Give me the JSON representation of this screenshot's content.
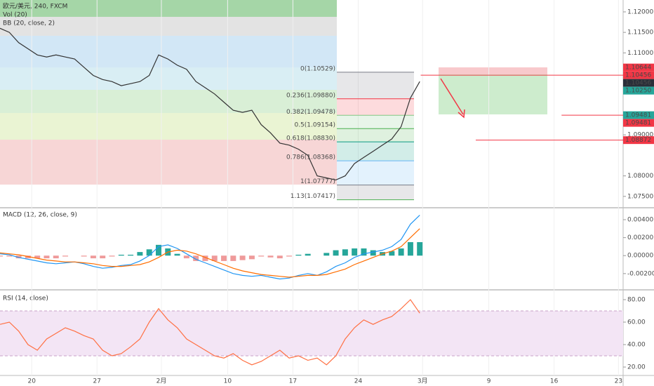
{
  "chart_data": [
    {
      "type": "line",
      "title": "欧元/美元, 240, FXCM",
      "indicators": [
        "Vol (20)",
        "BB (20, close, 2)"
      ],
      "x": [
        0,
        1,
        2,
        3,
        4,
        5,
        6,
        7,
        8,
        9,
        10,
        11,
        12,
        13,
        14,
        15,
        16,
        17,
        18,
        19,
        20,
        21,
        22,
        23,
        24,
        25,
        26,
        27,
        28,
        29,
        30,
        31,
        32,
        33,
        34,
        35,
        36,
        37,
        38,
        39,
        40,
        41,
        42,
        43,
        44,
        45
      ],
      "xlim": [
        0,
        66.8
      ],
      "xticks": [
        {
          "value": 3.4,
          "label": "20"
        },
        {
          "value": 10.4,
          "label": "27"
        },
        {
          "value": 17.3,
          "label": "2月"
        },
        {
          "value": 24.4,
          "label": "10"
        },
        {
          "value": 31.4,
          "label": "17"
        },
        {
          "value": 38.4,
          "label": "24"
        },
        {
          "value": 45.3,
          "label": "3月"
        },
        {
          "value": 52.4,
          "label": "9"
        },
        {
          "value": 59.4,
          "label": "16"
        },
        {
          "value": 66.3,
          "label": "23"
        }
      ],
      "ylim": [
        1.0724,
        1.1229
      ],
      "yticks": [
        {
          "value": 1.12,
          "label": "1.12000"
        },
        {
          "value": 1.115,
          "label": "1.11500"
        },
        {
          "value": 1.11,
          "label": "1.11000"
        },
        {
          "value": 1.09,
          "label": "1.09000"
        },
        {
          "value": 1.08,
          "label": "1.08000"
        },
        {
          "value": 1.075,
          "label": "1.07500"
        }
      ],
      "series": [
        {
          "color": "#333333",
          "values": [
            1.116,
            1.115,
            1.1125,
            1.111,
            1.1095,
            1.109,
            1.1095,
            1.109,
            1.1085,
            1.1065,
            1.1045,
            1.1035,
            1.103,
            1.102,
            1.1025,
            1.103,
            1.1045,
            1.1095,
            1.1085,
            1.107,
            1.106,
            1.103,
            1.1015,
            1.1,
            1.098,
            1.096,
            1.0955,
            1.096,
            1.0925,
            1.0905,
            1.088,
            1.0875,
            1.0865,
            1.085,
            1.08,
            1.0795,
            1.079,
            1.08,
            1.083,
            1.0845,
            1.086,
            1.0875,
            1.089,
            1.092,
            1.099,
            1.103
          ]
        }
      ],
      "fib": [
        {
          "label": "0(1.10529)",
          "value": 1.10529,
          "color": "#787b86"
        },
        {
          "label": "0.236(1.09880)",
          "value": 1.0988,
          "color": "#f23645"
        },
        {
          "label": "0.382(1.09478)",
          "value": 1.09478,
          "color": "#81c784"
        },
        {
          "label": "0.5(1.09154)",
          "value": 1.09154,
          "color": "#4caf50"
        },
        {
          "label": "0.618(1.08830)",
          "value": 1.0883,
          "color": "#089981"
        },
        {
          "label": "0.786(1.08368)",
          "value": 1.08368,
          "color": "#64b5f6"
        },
        {
          "label": "1(1.07777)",
          "value": 1.07777,
          "color": "#787b86"
        },
        {
          "label": "1.13(1.07417)",
          "value": 1.07417,
          "color": "#4caf50"
        }
      ],
      "hlines": [
        {
          "value": 1.10456,
          "x": 45.1,
          "color": "#f23645"
        },
        {
          "value": 1.09481,
          "x": 60.2,
          "color": "#f23645"
        },
        {
          "value": 1.08872,
          "x": 51.0,
          "color": "#f23645"
        }
      ],
      "price_labels": [
        {
          "value": 1.10644,
          "label": "1.10644",
          "color": "#f23645"
        },
        {
          "value": 1.10456,
          "label": "1.10456",
          "color": "#f23645"
        },
        {
          "value": 1.10456,
          "label": "1.10456",
          "color": "#2a2e39"
        },
        {
          "value": 1.1025,
          "label": "1.10250",
          "color": "#26a69a"
        },
        {
          "value": 1.09481,
          "label": "1.09481",
          "color": "#26a69a"
        },
        {
          "value": 1.09481,
          "label": "1.09481",
          "color": "#f23645"
        },
        {
          "value": 1.08872,
          "label": "1.08872",
          "color": "#f23645"
        }
      ]
    },
    {
      "type": "line",
      "title": "MACD (12, 26, close, 9)",
      "ylim": [
        -0.00373,
        0.00525
      ],
      "yticks": [
        {
          "value": 0.004,
          "label": "0.00400"
        },
        {
          "value": 0.002,
          "label": "0.00200"
        },
        {
          "value": 0,
          "label": "0.00000"
        },
        {
          "value": -0.002,
          "label": "-0.00200"
        }
      ],
      "series": [
        {
          "style": "histogram",
          "color": "#26a69a",
          "values": [
            -0.0001,
            -0.0001,
            -0.0003,
            -0.0003,
            -0.0003,
            -0.0003,
            -0.0003,
            -0.0001,
            0,
            -0.0001,
            -0.0003,
            -0.0003,
            -0.0001,
            0.0001,
            0.0001,
            0.0004,
            0.0007,
            0.0012,
            0.0008,
            0.0002,
            -0.0003,
            -0.0006,
            -0.0006,
            -0.0006,
            -0.0006,
            -0.0006,
            -0.0005,
            -0.0004,
            -0.0001,
            -0.0002,
            -0.0003,
            -0.0001,
            0.0001,
            0.0002,
            0,
            0.0003,
            0.0006,
            0.0007,
            0.0008,
            0.0008,
            0.0006,
            0.0004,
            0.0005,
            0.0008,
            0.0015,
            0.0015
          ]
        },
        {
          "style": "line",
          "color": "#2196f3",
          "values": [
            0.0002,
            0.0001,
            -0.0002,
            -0.0004,
            -0.0006,
            -0.0008,
            -0.0009,
            -0.0008,
            -0.0007,
            -0.0009,
            -0.0012,
            -0.0014,
            -0.0013,
            -0.0011,
            -0.001,
            -0.0006,
            0,
            0.001,
            0.0012,
            0.0008,
            0.0002,
            -0.0004,
            -0.0008,
            -0.0012,
            -0.0016,
            -0.002,
            -0.0022,
            -0.0023,
            -0.0022,
            -0.0024,
            -0.0026,
            -0.0025,
            -0.0022,
            -0.002,
            -0.0022,
            -0.0018,
            -0.0012,
            -0.0008,
            -0.0002,
            0.0002,
            0.0004,
            0.0006,
            0.001,
            0.0018,
            0.0035,
            0.0045
          ]
        },
        {
          "style": "line",
          "color": "#ff6d00",
          "values": [
            0.0003,
            0.0002,
            0.0001,
            -0.0001,
            -0.0003,
            -0.0005,
            -0.0006,
            -0.0007,
            -0.0007,
            -0.0008,
            -0.0009,
            -0.0011,
            -0.0012,
            -0.0012,
            -0.0011,
            -0.001,
            -0.0007,
            -0.0002,
            0.0004,
            0.0006,
            0.0005,
            0.0002,
            -0.0002,
            -0.0006,
            -0.001,
            -0.0014,
            -0.0017,
            -0.0019,
            -0.0021,
            -0.0022,
            -0.0023,
            -0.0024,
            -0.0023,
            -0.0022,
            -0.0022,
            -0.0021,
            -0.0018,
            -0.0015,
            -0.001,
            -0.0006,
            -0.0002,
            0.0002,
            0.0005,
            0.001,
            0.002,
            0.003
          ]
        }
      ]
    },
    {
      "type": "line",
      "title": "RSI (14, close)",
      "ylim": [
        12.5,
        88.1
      ],
      "yticks": [
        {
          "value": 80,
          "label": "80.00"
        },
        {
          "value": 60,
          "label": "60.00"
        },
        {
          "value": 40,
          "label": "40.00"
        },
        {
          "value": 20,
          "label": "20.00"
        }
      ],
      "bands": [
        30,
        70
      ],
      "band_color": "#f3e5f5",
      "series": [
        {
          "style": "line",
          "color": "#ff7043",
          "values": [
            58,
            60,
            52,
            40,
            35,
            45,
            50,
            55,
            52,
            48,
            45,
            35,
            30,
            32,
            38,
            45,
            60,
            72,
            62,
            55,
            45,
            40,
            35,
            30,
            28,
            32,
            26,
            22,
            25,
            30,
            35,
            28,
            30,
            26,
            28,
            22,
            30,
            45,
            55,
            62,
            58,
            62,
            65,
            72,
            80,
            68
          ]
        }
      ]
    }
  ]
}
